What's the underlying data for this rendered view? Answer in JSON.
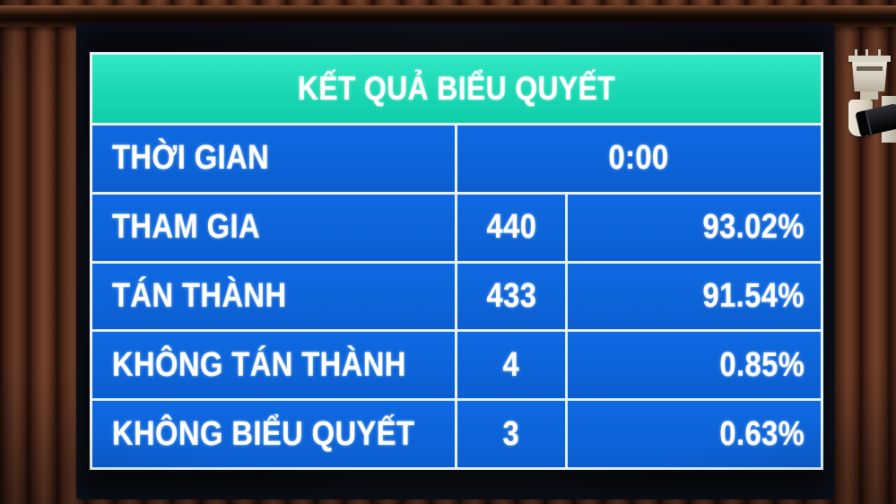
{
  "board": {
    "title": "KẾT QUẢ BIỂU QUYẾT",
    "rows": [
      {
        "label": "THỜI GIAN",
        "value": "0:00"
      },
      {
        "label": "THAM GIA",
        "count": "440",
        "percent": "93.02%"
      },
      {
        "label": "TÁN THÀNH",
        "count": "433",
        "percent": "91.54%"
      },
      {
        "label": "KHÔNG TÁN THÀNH",
        "count": "4",
        "percent": "0.85%"
      },
      {
        "label": "KHÔNG BIỂU QUYẾT",
        "count": "3",
        "percent": "0.63%"
      }
    ],
    "colors": {
      "header_bg": "#1ed7b2",
      "cell_bg": "#0e63d6",
      "grid_line": "#e9f1f6",
      "text": "#ffffff"
    }
  },
  "objects": {
    "camera": "ptz-security-camera"
  }
}
